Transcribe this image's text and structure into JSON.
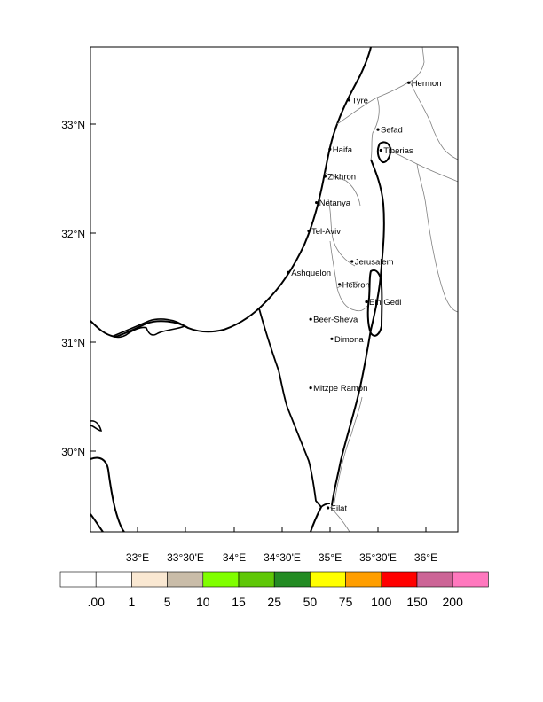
{
  "map": {
    "lon_ticks": [
      "33°E",
      "33°30'E",
      "34°E",
      "34°30'E",
      "35°E",
      "35°30'E",
      "36°E"
    ],
    "lat_ticks": [
      "33°N",
      "32°N",
      "31°N",
      "30°N"
    ],
    "cities": [
      {
        "name": "Hermon",
        "lon": 35.82,
        "lat": 33.38
      },
      {
        "name": "Tyre",
        "lon": 35.2,
        "lat": 33.22
      },
      {
        "name": "Sefad",
        "lon": 35.5,
        "lat": 32.95
      },
      {
        "name": "Haifa",
        "lon": 35.0,
        "lat": 32.77
      },
      {
        "name": "Tiberias",
        "lon": 35.53,
        "lat": 32.76
      },
      {
        "name": "Zikhron",
        "lon": 34.95,
        "lat": 32.52
      },
      {
        "name": "Netanya",
        "lon": 34.86,
        "lat": 32.28
      },
      {
        "name": "Tel-Aviv",
        "lon": 34.78,
        "lat": 32.02
      },
      {
        "name": "Jerusalem",
        "lon": 35.23,
        "lat": 31.74
      },
      {
        "name": "Ashquelon",
        "lon": 34.57,
        "lat": 31.64
      },
      {
        "name": "Hebron",
        "lon": 35.1,
        "lat": 31.53
      },
      {
        "name": "Ein Gedi",
        "lon": 35.38,
        "lat": 31.37
      },
      {
        "name": "Beer-Sheva",
        "lon": 34.8,
        "lat": 31.21
      },
      {
        "name": "Dimona",
        "lon": 35.02,
        "lat": 31.03
      },
      {
        "name": "Mitzpe Ramon",
        "lon": 34.8,
        "lat": 30.58
      },
      {
        "name": "Eilat",
        "lon": 34.98,
        "lat": 29.48
      }
    ]
  },
  "legend": {
    "colors": [
      "#ffffff",
      "#ffffff",
      "#fae8d2",
      "#c9bca8",
      "#80ff00",
      "#5fc707",
      "#238b23",
      "#ffff00",
      "#ff9e00",
      "#ff0000",
      "#cc6496",
      "#ff78be"
    ],
    "labels": [
      ".00",
      "1",
      "5",
      "10",
      "15",
      "25",
      "50",
      "75",
      "100",
      "150",
      "200"
    ]
  }
}
